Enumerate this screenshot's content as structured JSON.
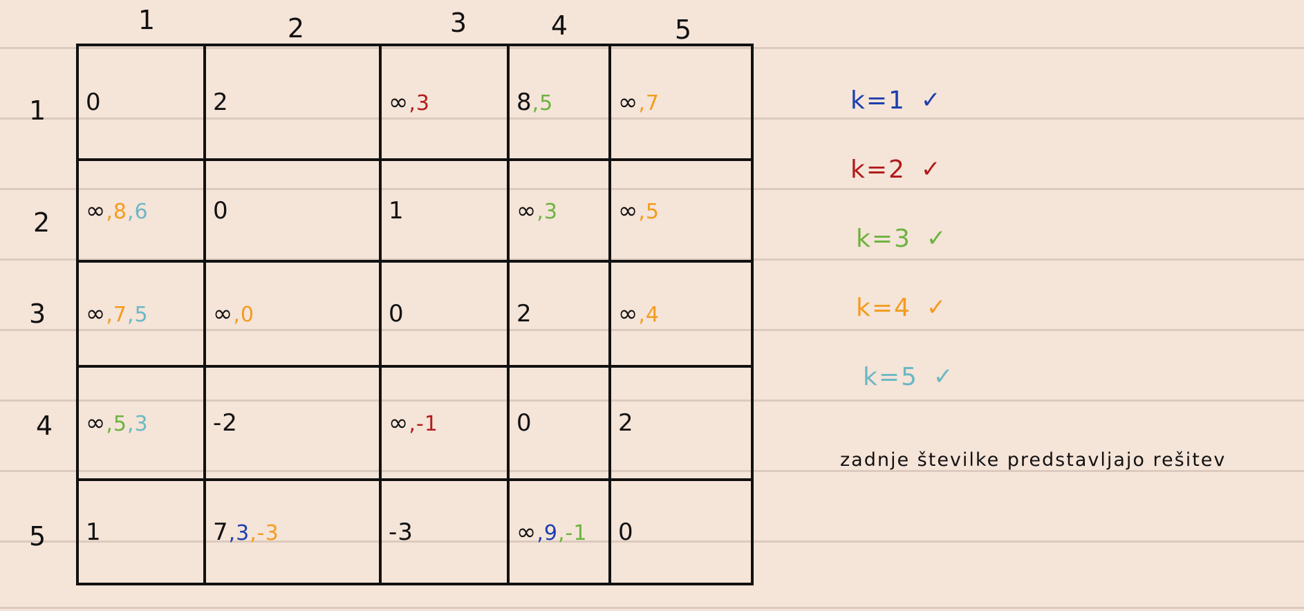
{
  "colors": {
    "ink": "#111111",
    "k1": "#1c3fb0",
    "k2": "#b01c1c",
    "k3": "#6db33f",
    "k4": "#f39c1f",
    "k5": "#6cb8c4"
  },
  "column_headers": [
    "1",
    "2",
    "3",
    "4",
    "5"
  ],
  "row_headers": [
    "1",
    "2",
    "3",
    "4",
    "5"
  ],
  "matrix": [
    [
      [
        {
          "t": "0",
          "c": "ink"
        }
      ],
      [
        {
          "t": "2",
          "c": "ink"
        }
      ],
      [
        {
          "t": "∞",
          "c": "ink"
        },
        {
          "t": ",3",
          "c": "k2"
        }
      ],
      [
        {
          "t": "8",
          "c": "ink"
        },
        {
          "t": ",5",
          "c": "k3"
        }
      ],
      [
        {
          "t": "∞",
          "c": "ink"
        },
        {
          "t": ",7",
          "c": "k4"
        }
      ]
    ],
    [
      [
        {
          "t": "∞",
          "c": "ink"
        },
        {
          "t": ",8",
          "c": "k4"
        },
        {
          "t": ",6",
          "c": "k5"
        }
      ],
      [
        {
          "t": "0",
          "c": "ink"
        }
      ],
      [
        {
          "t": "1",
          "c": "ink"
        }
      ],
      [
        {
          "t": "∞",
          "c": "ink"
        },
        {
          "t": ",3",
          "c": "k3"
        }
      ],
      [
        {
          "t": "∞",
          "c": "ink"
        },
        {
          "t": ",5",
          "c": "k4"
        }
      ]
    ],
    [
      [
        {
          "t": "∞",
          "c": "ink"
        },
        {
          "t": ",7",
          "c": "k4"
        },
        {
          "t": ",5",
          "c": "k5"
        }
      ],
      [
        {
          "t": "∞",
          "c": "ink"
        },
        {
          "t": ",0",
          "c": "k4"
        }
      ],
      [
        {
          "t": "0",
          "c": "ink"
        }
      ],
      [
        {
          "t": "2",
          "c": "ink"
        }
      ],
      [
        {
          "t": "∞",
          "c": "ink"
        },
        {
          "t": ",4",
          "c": "k4"
        }
      ]
    ],
    [
      [
        {
          "t": "∞",
          "c": "ink"
        },
        {
          "t": ",5",
          "c": "k3"
        },
        {
          "t": ",3",
          "c": "k5"
        }
      ],
      [
        {
          "t": "-2",
          "c": "ink"
        }
      ],
      [
        {
          "t": "∞",
          "c": "ink"
        },
        {
          "t": ",-1",
          "c": "k2"
        }
      ],
      [
        {
          "t": "0",
          "c": "ink"
        }
      ],
      [
        {
          "t": "2",
          "c": "ink"
        }
      ]
    ],
    [
      [
        {
          "t": "1",
          "c": "ink"
        }
      ],
      [
        {
          "t": "7",
          "c": "ink"
        },
        {
          "t": ",3",
          "c": "k1"
        },
        {
          "t": ",-3",
          "c": "k4"
        }
      ],
      [
        {
          "t": "-3",
          "c": "ink"
        }
      ],
      [
        {
          "t": "∞",
          "c": "ink"
        },
        {
          "t": ",9",
          "c": "k1"
        },
        {
          "t": ",-1",
          "c": "k3"
        }
      ],
      [
        {
          "t": "0",
          "c": "ink"
        }
      ]
    ]
  ],
  "legend": [
    {
      "label": "k=1",
      "check": "✓",
      "color": "k1"
    },
    {
      "label": "k=2",
      "check": "✓",
      "color": "k2"
    },
    {
      "label": "k=3",
      "check": "✓",
      "color": "k3"
    },
    {
      "label": "k=4",
      "check": "✓",
      "color": "k4"
    },
    {
      "label": "k=5",
      "check": "✓",
      "color": "k5"
    }
  ],
  "note": "zadnje številke predstavljajo rešitev"
}
